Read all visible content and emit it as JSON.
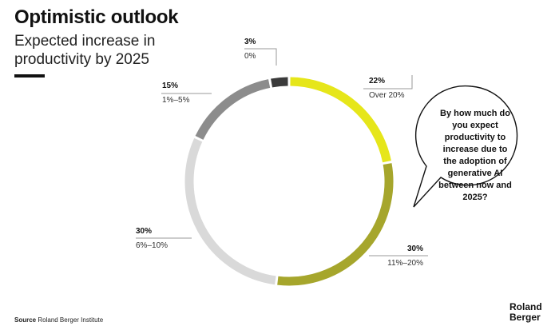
{
  "header": {
    "title": "Optimistic outlook",
    "subtitle": "Expected increase in productivity by 2025"
  },
  "question": "By how much do you expect productivity to increase due to the adoption of generative AI between now and 2025?",
  "footer": {
    "source_label": "Source",
    "source_text": "Roland Berger Institute",
    "brand_line1": "Roland",
    "brand_line2": "Berger"
  },
  "chart_data": {
    "type": "pie",
    "style": "donut",
    "title": "Expected increase in productivity by 2025",
    "start": "12 o'clock, clockwise",
    "slices": [
      {
        "label": "Over 20%",
        "value": 22,
        "value_label": "22%",
        "color": "#e6e61a"
      },
      {
        "label": "11%–20%",
        "value": 30,
        "value_label": "30%",
        "color": "#a6a62c"
      },
      {
        "label": "6%–10%",
        "value": 30,
        "value_label": "30%",
        "color": "#d9d9d9"
      },
      {
        "label": "1%–5%",
        "value": 15,
        "value_label": "15%",
        "color": "#8c8c8c"
      },
      {
        "label": "0%",
        "value": 3,
        "value_label": "3%",
        "color": "#3b3b3b"
      }
    ]
  }
}
